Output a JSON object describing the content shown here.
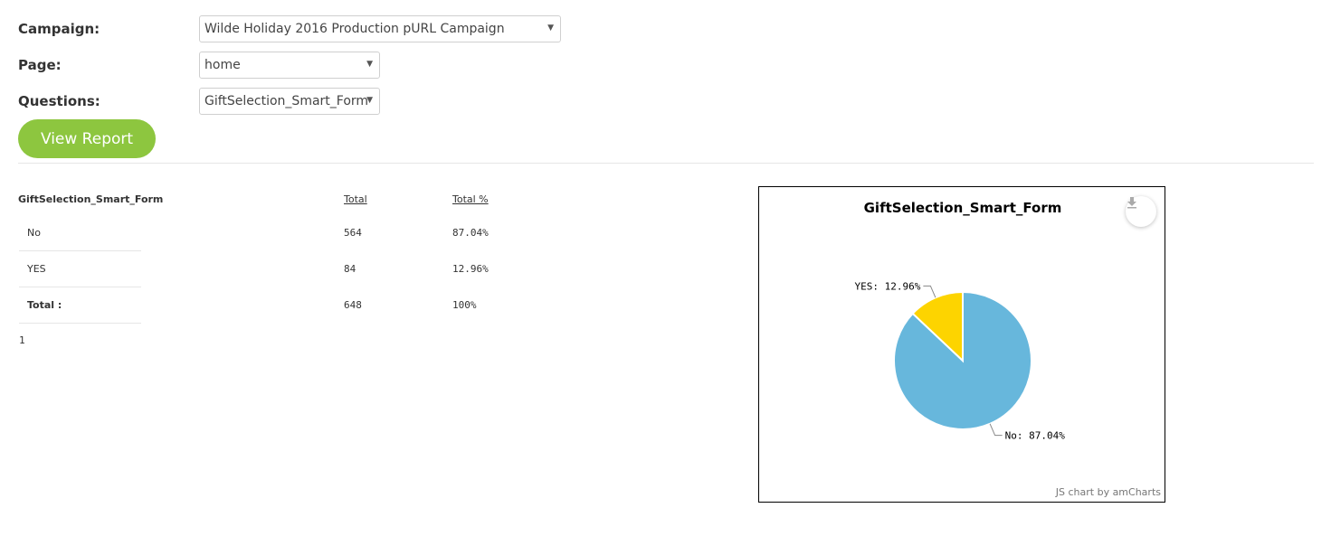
{
  "form": {
    "campaign_label": "Campaign:",
    "campaign_value": "Wilde Holiday 2016 Production pURL Campaign",
    "page_label": "Page:",
    "page_value": "home",
    "questions_label": "Questions:",
    "questions_value": "GiftSelection_Smart_Form",
    "view_report_label": "View Report"
  },
  "table": {
    "question_header": "GiftSelection_Smart_Form",
    "total_header": "Total",
    "total_pct_header": "Total %",
    "rows": [
      {
        "label": "No",
        "total": "564",
        "pct": "87.04%"
      },
      {
        "label": "YES",
        "total": "84",
        "pct": "12.96%"
      }
    ],
    "total_row": {
      "label": "Total :",
      "total": "648",
      "pct": "100%"
    },
    "pager": "1"
  },
  "chart_data": {
    "type": "pie",
    "title": "GiftSelection_Smart_Form",
    "slices": [
      {
        "label": "No",
        "value": 87.04,
        "display": "No: 87.04%",
        "color": "#67b7dc"
      },
      {
        "label": "YES",
        "value": 12.96,
        "display": "YES: 12.96%",
        "color": "#fdd400"
      }
    ],
    "credit": "JS chart by amCharts"
  }
}
